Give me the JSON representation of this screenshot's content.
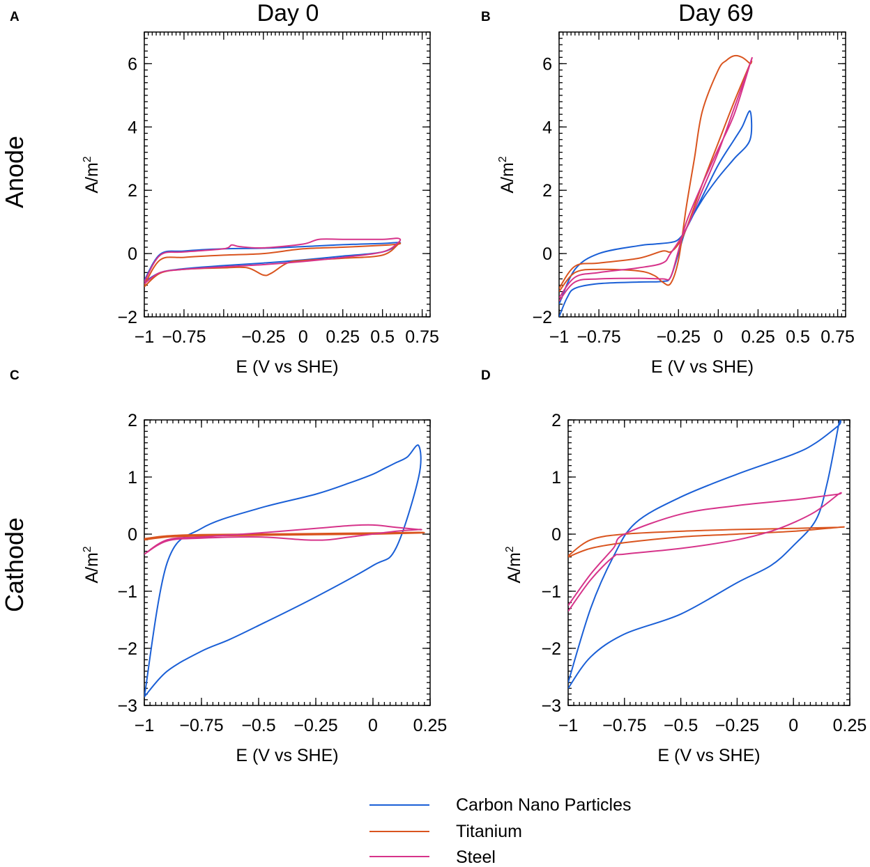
{
  "column_titles": [
    "Day 0",
    "Day 69"
  ],
  "row_titles": [
    "Anode",
    "Cathode"
  ],
  "legend": [
    {
      "name": "Carbon Nano Particles",
      "color": "#1a5fd6"
    },
    {
      "name": "Titanium",
      "color": "#d9541e"
    },
    {
      "name": "Steel",
      "color": "#d6338a"
    }
  ],
  "chart_data": [
    {
      "type": "line",
      "panel": "A",
      "xlabel": "E (V vs SHE)",
      "ylabel": "A/m",
      "ylabel_sup": "2",
      "xlim": [
        -1,
        0.8
      ],
      "ylim": [
        -2,
        7
      ],
      "xticks": [
        -1,
        -0.75,
        -0.25,
        0,
        0.25,
        0.5,
        0.75
      ],
      "xtick_labels": [
        "−1",
        "−0.75",
        "−0.25",
        "0",
        "0.25",
        "0.5",
        "0.75"
      ],
      "xticks_minor": [
        -0.5
      ],
      "yticks": [
        -2,
        0,
        2,
        4,
        6
      ],
      "ytick_labels": [
        "−2",
        "0",
        "2",
        "4",
        "6"
      ],
      "series": [
        {
          "name": "Carbon Nano Particles",
          "x": [
            -1,
            -0.9,
            -0.75,
            -0.5,
            -0.25,
            0,
            0.25,
            0.5,
            0.6,
            0.6,
            0.5,
            0.25,
            0,
            -0.25,
            -0.5,
            -0.75,
            -0.9,
            -1
          ],
          "y": [
            -0.9,
            -0.6,
            -0.48,
            -0.38,
            -0.3,
            -0.2,
            -0.08,
            0.05,
            0.3,
            0.35,
            0.32,
            0.28,
            0.22,
            0.17,
            0.15,
            0.08,
            -0.02,
            -0.85
          ]
        },
        {
          "name": "Titanium",
          "x": [
            -1,
            -0.9,
            -0.75,
            -0.5,
            -0.35,
            -0.25,
            -0.2,
            -0.1,
            0,
            0.25,
            0.5,
            0.6,
            0.6,
            0.5,
            0.25,
            0,
            -0.25,
            -0.5,
            -0.75,
            -0.9,
            -1
          ],
          "y": [
            -1.05,
            -0.62,
            -0.5,
            -0.45,
            -0.45,
            -0.68,
            -0.62,
            -0.3,
            -0.22,
            -0.15,
            -0.05,
            0.3,
            0.3,
            0.26,
            0.2,
            0.15,
            0.0,
            -0.05,
            -0.12,
            -0.2,
            -1.0
          ]
        },
        {
          "name": "Steel",
          "x": [
            -1,
            -0.9,
            -0.75,
            -0.5,
            -0.25,
            0,
            0.25,
            0.5,
            0.6,
            0.6,
            0.5,
            0.25,
            0.1,
            0,
            -0.25,
            -0.4,
            -0.45,
            -0.5,
            -0.75,
            -0.9,
            -1
          ],
          "y": [
            -0.95,
            -0.6,
            -0.5,
            -0.42,
            -0.35,
            -0.25,
            -0.12,
            0.05,
            0.35,
            0.48,
            0.45,
            0.45,
            0.45,
            0.3,
            0.18,
            0.22,
            0.27,
            0.15,
            0.05,
            -0.05,
            -0.9
          ]
        }
      ]
    },
    {
      "type": "line",
      "panel": "B",
      "xlabel": "E (V vs SHE)",
      "ylabel": "A/m",
      "ylabel_sup": "2",
      "xlim": [
        -1,
        0.8
      ],
      "ylim": [
        -2,
        7
      ],
      "xticks": [
        -1,
        -0.75,
        -0.25,
        0,
        0.25,
        0.5,
        0.75
      ],
      "xtick_labels": [
        "−1",
        "−0.75",
        "−0.25",
        "0",
        "0.25",
        "0.5",
        "0.75"
      ],
      "xticks_minor": [
        -0.5
      ],
      "yticks": [
        -2,
        0,
        2,
        4,
        6
      ],
      "ytick_labels": [
        "−2",
        "0",
        "2",
        "4",
        "6"
      ],
      "series": [
        {
          "name": "Carbon Nano Particles",
          "x": [
            -1,
            -0.95,
            -0.9,
            -0.75,
            -0.5,
            -0.35,
            -0.3,
            -0.25,
            -0.2,
            -0.1,
            0,
            0.1,
            0.2,
            0.2,
            0.15,
            0.1,
            0,
            -0.1,
            -0.2,
            -0.25,
            -0.3,
            -0.4,
            -0.5,
            -0.75,
            -0.9,
            -1
          ],
          "y": [
            -2.0,
            -1.4,
            -1.1,
            -0.95,
            -0.9,
            -0.88,
            -0.75,
            0.0,
            0.8,
            1.7,
            2.4,
            3.0,
            3.6,
            4.5,
            4.0,
            3.6,
            2.8,
            1.8,
            0.8,
            0.45,
            0.35,
            0.3,
            0.25,
            0.0,
            -0.5,
            -1.6
          ]
        },
        {
          "name": "Titanium",
          "x": [
            -1,
            -0.9,
            -0.75,
            -0.5,
            -0.4,
            -0.35,
            -0.3,
            -0.25,
            -0.2,
            -0.15,
            -0.1,
            0,
            0.05,
            0.1,
            0.15,
            0.2,
            0.2,
            0.1,
            0,
            -0.1,
            -0.2,
            -0.25,
            -0.3,
            -0.35,
            -0.5,
            -0.75,
            -0.9,
            -1
          ],
          "y": [
            -1.2,
            -0.6,
            -0.5,
            -0.55,
            -0.7,
            -0.9,
            -0.95,
            -0.2,
            1.5,
            3.0,
            4.5,
            5.8,
            6.1,
            6.25,
            6.2,
            6.0,
            6.0,
            4.8,
            3.5,
            2.2,
            0.8,
            0.3,
            0.05,
            0.08,
            -0.15,
            -0.3,
            -0.4,
            -1.1
          ]
        },
        {
          "name": "Steel",
          "x": [
            -1,
            -0.9,
            -0.75,
            -0.5,
            -0.35,
            -0.3,
            -0.25,
            -0.2,
            -0.1,
            0,
            0.1,
            0.2,
            0.2,
            0.1,
            0,
            -0.1,
            -0.2,
            -0.3,
            -0.35,
            -0.5,
            -0.75,
            -0.9,
            -1
          ],
          "y": [
            -1.5,
            -0.9,
            -0.8,
            -0.78,
            -0.8,
            -0.75,
            0.1,
            1.0,
            2.2,
            3.3,
            4.4,
            6.0,
            6.0,
            4.6,
            3.2,
            2.0,
            0.8,
            0.0,
            -0.3,
            -0.45,
            -0.6,
            -0.75,
            -1.4
          ]
        }
      ]
    },
    {
      "type": "line",
      "panel": "C",
      "xlabel": "E (V vs SHE)",
      "ylabel": "A/m",
      "ylabel_sup": "2",
      "xlim": [
        -1,
        0.25
      ],
      "ylim": [
        -3,
        2
      ],
      "xticks": [
        -1,
        -0.75,
        -0.5,
        -0.25,
        0,
        0.25
      ],
      "xtick_labels": [
        "−1",
        "−0.75",
        "−0.5",
        "−0.25",
        "0",
        "0.25"
      ],
      "xticks_minor": [],
      "yticks": [
        -3,
        -2,
        -1,
        0,
        1,
        2
      ],
      "ytick_labels": [
        "−3",
        "−2",
        "−1",
        "0",
        "1",
        "2"
      ],
      "series": [
        {
          "name": "Carbon Nano Particles",
          "x": [
            -1,
            -0.9,
            -0.75,
            -0.63,
            -0.5,
            -0.25,
            0,
            0.1,
            0.2,
            0.2,
            0.15,
            0.1,
            0.05,
            0,
            -0.1,
            -0.25,
            -0.5,
            -0.75,
            -0.9,
            -1
          ],
          "y": [
            -2.85,
            -2.4,
            -2.05,
            -1.85,
            -1.6,
            -1.1,
            -0.55,
            -0.25,
            1.0,
            1.55,
            1.35,
            1.25,
            1.15,
            1.05,
            0.9,
            0.7,
            0.45,
            0.1,
            -0.5,
            -2.85
          ]
        },
        {
          "name": "Titanium",
          "x": [
            -1,
            -0.9,
            -0.75,
            -0.5,
            -0.25,
            0,
            0.2,
            0.2,
            0,
            -0.25,
            -0.5,
            -0.75,
            -0.9,
            -1
          ],
          "y": [
            -0.1,
            -0.05,
            -0.03,
            -0.02,
            -0.01,
            0.0,
            0.02,
            0.03,
            0.02,
            0.01,
            0.0,
            -0.01,
            -0.03,
            -0.08
          ]
        },
        {
          "name": "Steel",
          "x": [
            -1,
            -0.9,
            -0.75,
            -0.5,
            -0.3,
            -0.2,
            -0.1,
            0.1,
            0.2,
            0.2,
            0.1,
            0,
            -0.1,
            -0.25,
            -0.5,
            -0.75,
            -0.9,
            -1
          ],
          "y": [
            -0.35,
            -0.12,
            -0.07,
            -0.05,
            -0.1,
            -0.1,
            -0.05,
            0.05,
            0.08,
            0.08,
            0.12,
            0.16,
            0.15,
            0.1,
            0.02,
            -0.05,
            -0.1,
            -0.35
          ]
        }
      ]
    },
    {
      "type": "line",
      "panel": "D",
      "xlabel": "E (V vs SHE)",
      "ylabel": "A/m",
      "ylabel_sup": "2",
      "xlim": [
        -1,
        0.25
      ],
      "ylim": [
        -3,
        2
      ],
      "xticks": [
        -1,
        -0.75,
        -0.5,
        -0.25,
        0,
        0.25
      ],
      "xtick_labels": [
        "−1",
        "−0.75",
        "−0.5",
        "−0.25",
        "0",
        "0.25"
      ],
      "xticks_minor": [],
      "yticks": [
        -3,
        -2,
        -1,
        0,
        1,
        2
      ],
      "ytick_labels": [
        "−3",
        "−2",
        "−1",
        "0",
        "1",
        "2"
      ],
      "series": [
        {
          "name": "Carbon Nano Particles",
          "x": [
            -1,
            -0.9,
            -0.75,
            -0.5,
            -0.25,
            -0.1,
            0,
            0.1,
            0.15,
            0.2,
            0.2,
            0.1,
            0,
            -0.25,
            -0.5,
            -0.7,
            -0.8,
            -0.9,
            -1
          ],
          "y": [
            -2.7,
            -2.15,
            -1.75,
            -1.4,
            -0.85,
            -0.55,
            -0.2,
            0.25,
            0.9,
            1.9,
            1.9,
            1.6,
            1.4,
            1.05,
            0.65,
            0.2,
            -0.4,
            -1.3,
            -2.6
          ]
        },
        {
          "name": "Titanium",
          "x": [
            -1,
            -0.9,
            -0.75,
            -0.5,
            -0.25,
            0,
            0.2,
            0.2,
            0,
            -0.25,
            -0.5,
            -0.75,
            -0.9,
            -1
          ],
          "y": [
            -0.4,
            -0.25,
            -0.15,
            -0.05,
            0.0,
            0.05,
            0.12,
            0.12,
            0.1,
            0.08,
            0.05,
            0.0,
            -0.1,
            -0.38
          ]
        },
        {
          "name": "Steel",
          "x": [
            -1,
            -0.9,
            -0.8,
            -0.75,
            -0.5,
            -0.25,
            -0.1,
            0,
            0.1,
            0.2,
            0.2,
            0.1,
            0,
            -0.25,
            -0.5,
            -0.75,
            -0.8,
            -0.9,
            -1
          ],
          "y": [
            -1.35,
            -0.8,
            -0.4,
            -0.35,
            -0.25,
            -0.1,
            0.05,
            0.2,
            0.4,
            0.7,
            0.7,
            0.65,
            0.6,
            0.5,
            0.35,
            0.0,
            -0.25,
            -0.7,
            -1.25
          ]
        }
      ]
    }
  ]
}
